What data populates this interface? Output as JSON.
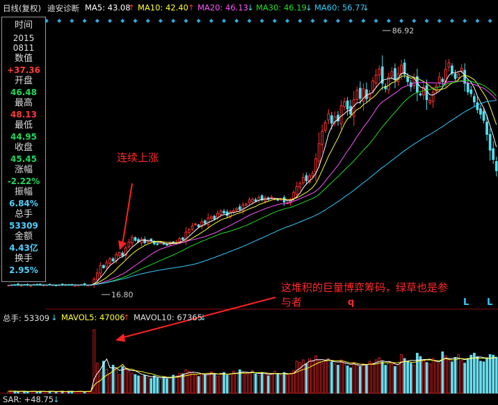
{
  "header": {
    "period_label": "日线(复权)",
    "stock_name": "迪安诊断",
    "ma5": "MA5: 43.08",
    "ma10": "MA10: 42.40",
    "ma20": "MA20: 46.13",
    "ma30": "MA30: 46.19",
    "ma60": "MA60: 56.77",
    "arrow_up": "↑",
    "arrow_down": "↓",
    "colors": {
      "ma5": "#ffffff",
      "ma10": "#ffff33",
      "ma20": "#ff55ff",
      "ma30": "#22dd22",
      "ma60": "#33ccff",
      "up": "#ff3333",
      "down": "#55ddee"
    }
  },
  "info_panel": {
    "time_label": "时间",
    "year": "2015",
    "date": "0811",
    "value_label": "数值",
    "value": "+37.36",
    "open_label": "开盘",
    "open": "46.48",
    "high_label": "最高",
    "high": "48.13",
    "low_label": "最低",
    "low": "44.95",
    "close_label": "收盘",
    "close": "45.45",
    "change_label": "涨幅",
    "change": "-2.22%",
    "amplitude_label": "振幅",
    "amplitude": "6.84%",
    "volume_label": "总手",
    "volume": "53309",
    "amount_label": "金额",
    "amount": "4.43亿",
    "turnover_label": "换手",
    "turnover": "2.95%"
  },
  "annotations": {
    "rally": "连续上涨",
    "chips_line1": "这堆积的巨量博弈筹码，绿草也是参",
    "chips_line2": "与者",
    "markers": [
      "q",
      "L",
      "L"
    ]
  },
  "volume_header": {
    "total": "总手: 53309",
    "mavol5": "MAVOL5: 47006",
    "mavol10": "MAVOL10: 67365"
  },
  "sar": {
    "label": "SAR: +48.75"
  },
  "chart_data": {
    "type": "candlestick",
    "high_label": "86.92",
    "low_label": "16.80",
    "price_range": [
      15,
      92
    ],
    "close": [
      16.9,
      17.0,
      17.0,
      16.9,
      17.1,
      17.0,
      16.9,
      17.0,
      17.1,
      17.0,
      16.9,
      17.0,
      17.0,
      17.1,
      17.0,
      16.9,
      17.0,
      17.0,
      17.1,
      17.0,
      16.9,
      17.0,
      17.0,
      17.1,
      17.0,
      16.9,
      17.0,
      18.7,
      20.5,
      22.6,
      22.0,
      23.5,
      24.6,
      24.0,
      25.8,
      26.4,
      25.5,
      27.8,
      29.5,
      30.8,
      30.0,
      29.6,
      30.4,
      29.3,
      30.0,
      29.8,
      29.0,
      28.9,
      29.4,
      29.0,
      28.6,
      29.2,
      29.3,
      29.6,
      30.5,
      30.2,
      32.4,
      33.1,
      34.2,
      34.8,
      34.0,
      35.4,
      35.0,
      36.5,
      36.9,
      36.2,
      37.9,
      38.5,
      38.0,
      37.3,
      38.3,
      38.7,
      39.3,
      39.0,
      40.3,
      40.6,
      41.8,
      42.0,
      41.5,
      42.5,
      41.8,
      42.4,
      42.0,
      42.6,
      42.2,
      41.7,
      42.0,
      41.2,
      40.9,
      41.8,
      44.0,
      45.7,
      46.6,
      48.3,
      47.4,
      48.8,
      49.5,
      53.8,
      58.2,
      61.8,
      64.3,
      66.9,
      64.2,
      66.0,
      64.8,
      69.3,
      70.4,
      68.3,
      66.8,
      71.1,
      73.8,
      71.4,
      74.2,
      71.3,
      72.8,
      76.5,
      78.2,
      80.0,
      75.8,
      74.2,
      77.6,
      79.2,
      76.9,
      78.6,
      81.1,
      78.5,
      76.3,
      74.8,
      76.9,
      73.3,
      72.4,
      74.6,
      71.0,
      70.8,
      73.2,
      75.0,
      77.6,
      76.3,
      79.9,
      81.8,
      78.8,
      77.2,
      78.5,
      80.2,
      75.8,
      73.3,
      72.8,
      70.4,
      68.1,
      66.8,
      65.0,
      60.9,
      56.3,
      53.6,
      50.3
    ],
    "volume_max": 100,
    "volume": [
      3,
      3,
      3,
      2,
      3,
      3,
      2,
      3,
      3,
      2,
      3,
      3,
      2,
      3,
      3,
      2,
      3,
      3,
      2,
      3,
      3,
      2,
      3,
      3,
      2,
      3,
      3,
      95,
      45,
      32,
      48,
      36,
      30,
      42,
      35,
      28,
      40,
      38,
      33,
      30,
      28,
      26,
      25,
      27,
      24,
      22,
      26,
      23,
      21,
      25,
      22,
      24,
      27,
      26,
      30,
      29,
      35,
      33,
      31,
      28,
      25,
      29,
      27,
      30,
      32,
      28,
      26,
      30,
      31,
      27,
      29,
      33,
      30,
      35,
      32,
      28,
      30,
      34,
      29,
      27,
      31,
      28,
      26,
      30,
      33,
      29,
      27,
      31,
      28,
      30,
      34,
      48,
      46,
      50,
      44,
      52,
      49,
      56,
      50,
      45,
      48,
      52,
      47,
      44,
      42,
      50,
      45,
      41,
      38,
      46,
      43,
      40,
      44,
      42,
      48,
      45,
      50,
      53,
      47,
      42,
      46,
      44,
      40,
      43,
      58,
      52,
      48,
      45,
      42,
      60,
      55,
      50,
      46,
      44,
      52,
      48,
      45,
      62,
      56,
      50,
      47,
      53,
      58,
      49,
      45,
      52,
      57,
      60,
      55,
      48,
      47,
      53,
      58,
      57,
      54
    ],
    "ma_series": [
      "MA5",
      "MA10",
      "MA20",
      "MA30",
      "MA60"
    ],
    "mavol_series": [
      "MAVOL5",
      "MAVOL10"
    ]
  }
}
